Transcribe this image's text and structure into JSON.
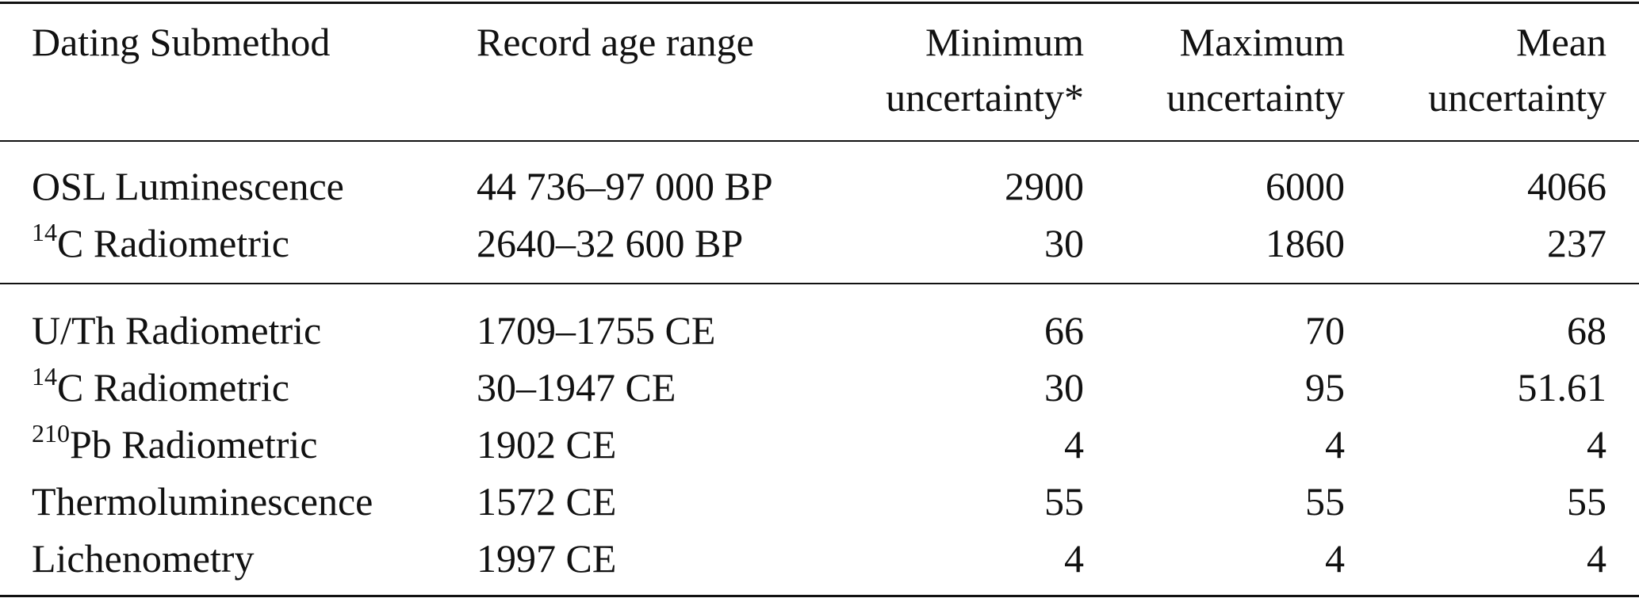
{
  "table": {
    "columns": [
      [
        "Dating Submethod"
      ],
      [
        "Record age range"
      ],
      [
        "Minimum",
        "uncertainty*"
      ],
      [
        "Maximum",
        "uncertainty"
      ],
      [
        "Mean",
        "uncertainty"
      ]
    ],
    "groups": [
      [
        {
          "method": {
            "text": "OSL Luminescence"
          },
          "range": "44 736–97 000 BP",
          "min": 2900,
          "max": 6000,
          "mean": 4066
        },
        {
          "method": {
            "sup": "14",
            "text": "C Radiometric"
          },
          "range": "2640–32 600 BP",
          "min": 30,
          "max": 1860,
          "mean": 237
        }
      ],
      [
        {
          "method": {
            "text": "U/Th Radiometric"
          },
          "range": "1709–1755 CE",
          "min": 66,
          "max": 70,
          "mean": 68
        },
        {
          "method": {
            "sup": "14",
            "text": "C Radiometric"
          },
          "range": "30–1947 CE",
          "min": 30,
          "max": 95,
          "mean": 51.61
        },
        {
          "method": {
            "sup": "210",
            "text": "Pb Radiometric"
          },
          "range": "1902 CE",
          "min": 4,
          "max": 4,
          "mean": 4
        },
        {
          "method": {
            "text": "Thermoluminescence"
          },
          "range": "1572 CE",
          "min": 55,
          "max": 55,
          "mean": 55
        },
        {
          "method": {
            "text": "Lichenometry"
          },
          "range": "1997 CE",
          "min": 4,
          "max": 4,
          "mean": 4
        }
      ]
    ]
  }
}
